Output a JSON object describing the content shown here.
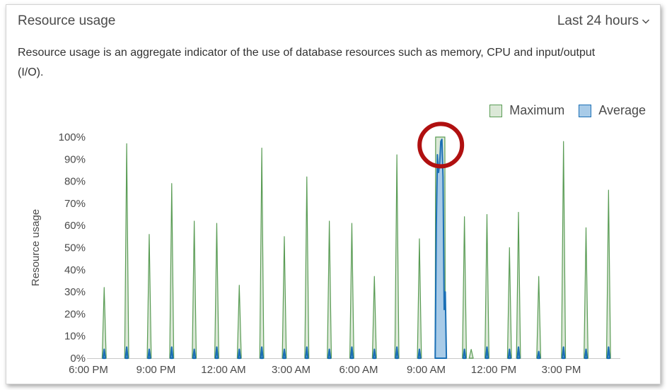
{
  "header": {
    "title": "Resource usage",
    "range_label": "Last 24 hours"
  },
  "description": "Resource usage is an aggregate indicator of the use of database resources such as memory, CPU and input/output (I/O).",
  "colors": {
    "maximum_fill": "#dbe8d7",
    "maximum_line": "#5a9c55",
    "average_fill": "#a8cbe8",
    "average_line": "#1b6fb5",
    "highlight_circle": "#b01010"
  },
  "chart_data": {
    "type": "area",
    "title": "",
    "xlabel": "",
    "ylabel": "Resource usage",
    "ylim": [
      0,
      100
    ],
    "xlim": [
      18,
      42
    ],
    "legend": "top-right",
    "y_ticks": [
      "0%",
      "10%",
      "20%",
      "30%",
      "40%",
      "50%",
      "60%",
      "70%",
      "80%",
      "90%",
      "100%"
    ],
    "x_ticks": [
      {
        "x": 18,
        "label": "6:00 PM"
      },
      {
        "x": 21,
        "label": "9:00 PM"
      },
      {
        "x": 24,
        "label": "12:00 AM"
      },
      {
        "x": 27,
        "label": "3:00 AM"
      },
      {
        "x": 30,
        "label": "6:00 AM"
      },
      {
        "x": 33,
        "label": "9:00 AM"
      },
      {
        "x": 36,
        "label": "12:00 PM"
      },
      {
        "x": 39,
        "label": "3:00 PM"
      }
    ],
    "series": [
      {
        "name": "Maximum",
        "spikes": [
          {
            "x": 18.7,
            "y": 32
          },
          {
            "x": 19.7,
            "y": 97
          },
          {
            "x": 20.7,
            "y": 56
          },
          {
            "x": 21.7,
            "y": 79
          },
          {
            "x": 22.7,
            "y": 62
          },
          {
            "x": 23.7,
            "y": 61
          },
          {
            "x": 24.7,
            "y": 33
          },
          {
            "x": 25.7,
            "y": 95
          },
          {
            "x": 26.7,
            "y": 55
          },
          {
            "x": 27.7,
            "y": 82
          },
          {
            "x": 28.7,
            "y": 62
          },
          {
            "x": 29.7,
            "y": 61
          },
          {
            "x": 30.7,
            "y": 37
          },
          {
            "x": 31.7,
            "y": 92
          },
          {
            "x": 32.7,
            "y": 54
          },
          {
            "x": 34.7,
            "y": 64
          },
          {
            "x": 35.0,
            "y": 4
          },
          {
            "x": 35.7,
            "y": 65
          },
          {
            "x": 36.7,
            "y": 50
          },
          {
            "x": 37.1,
            "y": 66
          },
          {
            "x": 38.0,
            "y": 37
          },
          {
            "x": 39.1,
            "y": 98
          },
          {
            "x": 40.1,
            "y": 59
          },
          {
            "x": 41.1,
            "y": 76
          }
        ],
        "peak_block": {
          "x_start": 33.4,
          "x_end": 33.85,
          "y": 100
        }
      },
      {
        "name": "Average",
        "spikes": [
          {
            "x": 18.7,
            "y": 4
          },
          {
            "x": 19.7,
            "y": 5
          },
          {
            "x": 20.7,
            "y": 4
          },
          {
            "x": 21.7,
            "y": 5
          },
          {
            "x": 22.7,
            "y": 4
          },
          {
            "x": 23.7,
            "y": 5
          },
          {
            "x": 24.7,
            "y": 4
          },
          {
            "x": 25.7,
            "y": 5
          },
          {
            "x": 26.7,
            "y": 4
          },
          {
            "x": 27.7,
            "y": 5
          },
          {
            "x": 28.7,
            "y": 4
          },
          {
            "x": 29.7,
            "y": 5
          },
          {
            "x": 30.7,
            "y": 4
          },
          {
            "x": 31.7,
            "y": 5
          },
          {
            "x": 32.7,
            "y": 4
          },
          {
            "x": 34.7,
            "y": 4
          },
          {
            "x": 35.7,
            "y": 5
          },
          {
            "x": 36.7,
            "y": 4
          },
          {
            "x": 37.1,
            "y": 5
          },
          {
            "x": 38.0,
            "y": 3
          },
          {
            "x": 39.1,
            "y": 5
          },
          {
            "x": 40.1,
            "y": 4
          },
          {
            "x": 41.1,
            "y": 5
          }
        ],
        "peak_profile": [
          {
            "x": 33.4,
            "y": 0
          },
          {
            "x": 33.45,
            "y": 60
          },
          {
            "x": 33.5,
            "y": 92
          },
          {
            "x": 33.55,
            "y": 84
          },
          {
            "x": 33.6,
            "y": 88
          },
          {
            "x": 33.65,
            "y": 98
          },
          {
            "x": 33.7,
            "y": 99
          },
          {
            "x": 33.75,
            "y": 82
          },
          {
            "x": 33.8,
            "y": 22
          },
          {
            "x": 33.85,
            "y": 30
          },
          {
            "x": 33.9,
            "y": 0
          }
        ]
      }
    ],
    "annotation": {
      "type": "circle",
      "x": 33.65,
      "y": 97
    }
  }
}
